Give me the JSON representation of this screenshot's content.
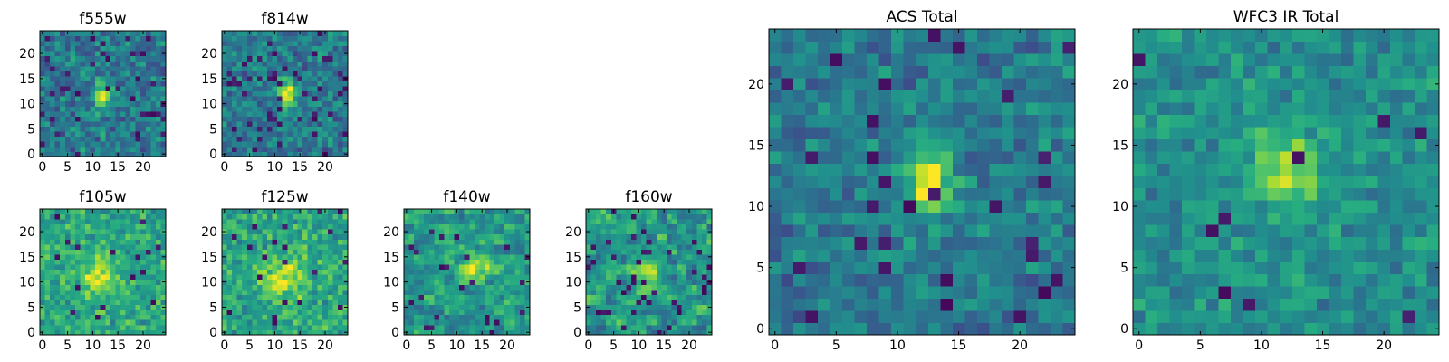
{
  "chart_data": {
    "type": "heatmap",
    "colormap": "viridis",
    "value_range": [
      0,
      1
    ],
    "panels": [
      {
        "id": "f555w",
        "title": "f555w",
        "grid": 25,
        "xticks": [
          "0",
          "5",
          "10",
          "15",
          "20"
        ],
        "yticks": [
          "0",
          "5",
          "10",
          "15",
          "20"
        ],
        "source": {
          "cx": 12,
          "cy": 11.5,
          "sx": 1.0,
          "sy": 2.0,
          "amp": 0.55,
          "base": 0.42,
          "noise": 0.48,
          "seed": 11,
          "block": 1,
          "dark": 0.07
        }
      },
      {
        "id": "f814w",
        "title": "f814w",
        "grid": 25,
        "xticks": [
          "0",
          "5",
          "10",
          "15",
          "20"
        ],
        "yticks": [
          "0",
          "5",
          "10",
          "15",
          "20"
        ],
        "source": {
          "cx": 12.5,
          "cy": 12,
          "sx": 1.3,
          "sy": 2.0,
          "amp": 0.55,
          "base": 0.42,
          "noise": 0.45,
          "seed": 22,
          "block": 1,
          "dark": 0.07
        }
      },
      {
        "id": "f105w",
        "title": "f105w",
        "grid": 25,
        "xticks": [
          "0",
          "5",
          "10",
          "15",
          "20"
        ],
        "yticks": [
          "0",
          "5",
          "10",
          "15",
          "20"
        ],
        "source": {
          "cx": 11,
          "cy": 11,
          "sx": 2.5,
          "sy": 3.0,
          "amp": 0.3,
          "base": 0.6,
          "noise": 0.4,
          "seed": 33,
          "block": 1,
          "dark": 0.02
        }
      },
      {
        "id": "f125w",
        "title": "f125w",
        "grid": 25,
        "xticks": [
          "0",
          "5",
          "10",
          "15",
          "20"
        ],
        "yticks": [
          "0",
          "5",
          "10",
          "15",
          "20"
        ],
        "source": {
          "cx": 12,
          "cy": 11,
          "sx": 3.0,
          "sy": 3.0,
          "amp": 0.3,
          "base": 0.6,
          "noise": 0.45,
          "seed": 44,
          "block": 1,
          "dark": 0.03
        }
      },
      {
        "id": "f140w",
        "title": "f140w",
        "grid": 25,
        "xticks": [
          "0",
          "5",
          "10",
          "15",
          "20"
        ],
        "yticks": [
          "0",
          "5",
          "10",
          "15",
          "20"
        ],
        "source": {
          "cx": 14,
          "cy": 13,
          "sx": 2.0,
          "sy": 2.0,
          "amp": 0.35,
          "base": 0.55,
          "noise": 0.45,
          "seed": 55,
          "block": 2,
          "dark": 0.04
        }
      },
      {
        "id": "f160w",
        "title": "f160w",
        "grid": 25,
        "xticks": [
          "0",
          "5",
          "10",
          "15",
          "20"
        ],
        "yticks": [
          "0",
          "5",
          "10",
          "15",
          "20"
        ],
        "source": {
          "cx": 12,
          "cy": 12,
          "sx": 2.0,
          "sy": 2.0,
          "amp": 0.35,
          "base": 0.55,
          "noise": 0.5,
          "seed": 66,
          "block": 2,
          "dark": 0.05
        }
      },
      {
        "id": "acs-total",
        "title": "ACS Total",
        "grid": 25,
        "xticks": [
          "0",
          "5",
          "10",
          "15",
          "20"
        ],
        "yticks": [
          "0",
          "5",
          "10",
          "15",
          "20"
        ],
        "source": {
          "cx": 12.5,
          "cy": 12,
          "sx": 1.3,
          "sy": 2.2,
          "amp": 0.55,
          "base": 0.42,
          "noise": 0.4,
          "seed": 77,
          "block": 1,
          "dark": 0.05
        }
      },
      {
        "id": "wfc3-ir-total",
        "title": "WFC3 IR Total",
        "grid": 25,
        "xticks": [
          "0",
          "5",
          "10",
          "15",
          "20"
        ],
        "yticks": [
          "0",
          "5",
          "10",
          "15",
          "20"
        ],
        "source": {
          "cx": 12,
          "cy": 13,
          "sx": 2.0,
          "sy": 2.0,
          "amp": 0.4,
          "base": 0.5,
          "noise": 0.35,
          "seed": 88,
          "block": 1,
          "dark": 0.02
        }
      }
    ]
  }
}
